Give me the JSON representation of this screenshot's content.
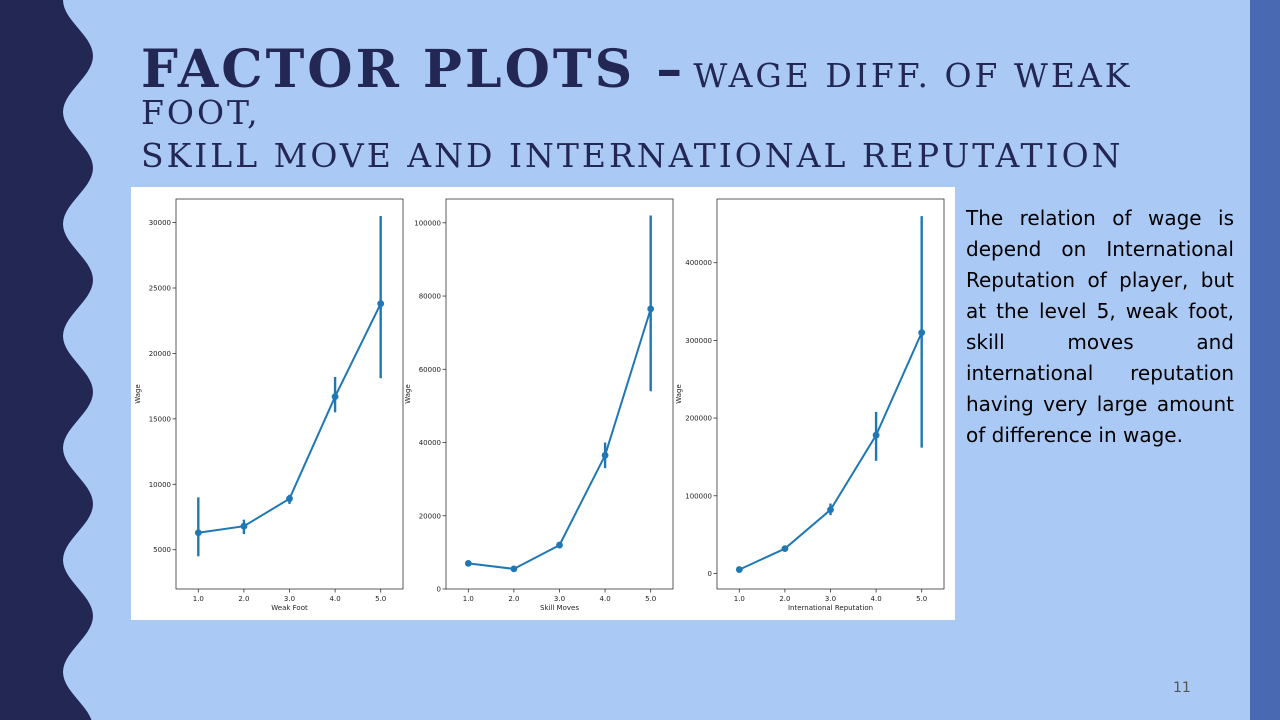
{
  "slide": {
    "title_main": "FACTOR PLOTS –",
    "title_rest": "WAGE DIFF. OF WEAK FOOT,",
    "title_line2": "SKILL MOVE AND INTERNATIONAL REPUTATION",
    "description": "The relation of wage is depend on International Reputation of player, but at the level 5, weak foot, skill moves and international reputation having very large amount of difference in wage.",
    "page_number": "11"
  },
  "colors": {
    "background": "#abc9f5",
    "left_band": "#232754",
    "right_band": "#4a69b3",
    "series": "#1f77b4"
  },
  "chart_data": [
    {
      "type": "line",
      "categories": [
        "1.0",
        "2.0",
        "3.0",
        "4.0",
        "5.0"
      ],
      "values": [
        6300,
        6800,
        8900,
        16700,
        23800
      ],
      "ci_low": [
        4500,
        6200,
        8500,
        15500,
        18100
      ],
      "ci_high": [
        9000,
        7300,
        9200,
        18200,
        30500
      ],
      "xlabel": "Weak Foot",
      "ylabel": "Wage",
      "ylim": [
        2000,
        31800
      ],
      "yticks": [
        5000,
        10000,
        15000,
        20000,
        25000,
        30000
      ],
      "ytick_labels": [
        "5000",
        "10000",
        "15000",
        "20000",
        "25000",
        "30000"
      ],
      "grid": false
    },
    {
      "type": "line",
      "categories": [
        "1.0",
        "2.0",
        "3.0",
        "4.0",
        "5.0"
      ],
      "values": [
        7000,
        5500,
        12000,
        36500,
        76500
      ],
      "ci_low": [
        6700,
        5300,
        11600,
        33000,
        54000
      ],
      "ci_high": [
        7300,
        5800,
        12400,
        40000,
        102000
      ],
      "xlabel": "Skill Moves",
      "ylabel": "Wage",
      "ylim": [
        0,
        106500
      ],
      "yticks": [
        0,
        20000,
        40000,
        60000,
        80000,
        100000
      ],
      "ytick_labels": [
        "0",
        "20000",
        "40000",
        "60000",
        "80000",
        "100000"
      ],
      "grid": false
    },
    {
      "type": "line",
      "categories": [
        "1.0",
        "2.0",
        "3.0",
        "4.0",
        "5.0"
      ],
      "values": [
        5000,
        32000,
        82000,
        178000,
        310000
      ],
      "ci_low": [
        4500,
        30500,
        75000,
        145000,
        162000
      ],
      "ci_high": [
        5500,
        33500,
        90000,
        208000,
        460000
      ],
      "xlabel": "International Reputation",
      "ylabel": "Wage",
      "ylim": [
        -20000,
        482000
      ],
      "yticks": [
        0,
        100000,
        200000,
        300000,
        400000
      ],
      "ytick_labels": [
        "0",
        "100000",
        "200000",
        "300000",
        "400000"
      ],
      "grid": false
    }
  ]
}
